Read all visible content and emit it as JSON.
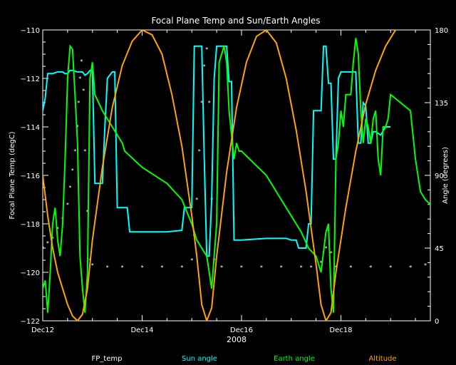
{
  "chart_data": {
    "type": "line",
    "title": "Focal Plane Temp and Sun/Earth Angles",
    "ylabel_left": "Focal Plane Temp (degC)",
    "ylabel_right": "Angle (degrees)",
    "xlabel": "2008",
    "x_ticks": [
      "Dec12",
      "Dec14",
      "Dec16",
      "Dec18"
    ],
    "x_tick_days": [
      12,
      14,
      16,
      18
    ],
    "xlim": [
      12,
      19.8
    ],
    "ylim_left": [
      -122,
      -110
    ],
    "y_ticks_left": [
      -122,
      -120,
      -118,
      -116,
      -114,
      -112,
      -110
    ],
    "ylim_right": [
      0,
      180
    ],
    "y_ticks_right": [
      0,
      45,
      90,
      135,
      180
    ],
    "colors": {
      "FP_temp": "#ffffff",
      "Sun angle": "#00ffff",
      "Earth angle": "#00ff00",
      "Altitude": "#ffa500"
    },
    "series": [
      {
        "name": "FP_temp",
        "axis": "left",
        "style": "markers",
        "points": [
          [
            12.0,
            -119.0
          ],
          [
            12.1,
            -118.8
          ],
          [
            12.2,
            -118.6
          ],
          [
            12.3,
            -118.2
          ],
          [
            12.4,
            -117.8
          ],
          [
            12.5,
            -117.2
          ],
          [
            12.55,
            -116.5
          ],
          [
            12.6,
            -115.8
          ],
          [
            12.65,
            -115.0
          ],
          [
            12.7,
            -114.0
          ],
          [
            12.72,
            -113.0
          ],
          [
            12.75,
            -112.0
          ],
          [
            12.78,
            -111.3
          ],
          [
            12.82,
            -112.5
          ],
          [
            12.85,
            -115.0
          ],
          [
            12.9,
            -117.5
          ],
          [
            12.95,
            -119.5
          ],
          [
            13.0,
            -119.7
          ],
          [
            13.3,
            -119.8
          ],
          [
            13.6,
            -119.8
          ],
          [
            14.0,
            -119.8
          ],
          [
            14.4,
            -119.8
          ],
          [
            14.8,
            -119.8
          ],
          [
            15.0,
            -119.5
          ],
          [
            15.05,
            -118.5
          ],
          [
            15.1,
            -117.0
          ],
          [
            15.15,
            -115.0
          ],
          [
            15.2,
            -113.0
          ],
          [
            15.25,
            -111.5
          ],
          [
            15.3,
            -110.8
          ],
          [
            15.35,
            -113.0
          ],
          [
            15.4,
            -117.0
          ],
          [
            15.45,
            -119.5
          ],
          [
            15.6,
            -119.8
          ],
          [
            16.0,
            -119.8
          ],
          [
            16.4,
            -119.8
          ],
          [
            16.8,
            -119.8
          ],
          [
            17.2,
            -119.8
          ],
          [
            17.4,
            -119.8
          ],
          [
            17.6,
            -119.6
          ],
          [
            17.7,
            -119.0
          ],
          [
            17.75,
            -118.3
          ],
          [
            17.8,
            -119.2
          ],
          [
            17.9,
            -119.8
          ],
          [
            18.2,
            -119.8
          ],
          [
            18.6,
            -119.8
          ],
          [
            19.0,
            -119.8
          ],
          [
            19.4,
            -119.8
          ],
          [
            19.7,
            -119.7
          ]
        ]
      },
      {
        "name": "Sun angle",
        "axis": "right",
        "points": [
          [
            12.0,
            130
          ],
          [
            12.05,
            138
          ],
          [
            12.1,
            153
          ],
          [
            12.2,
            153
          ],
          [
            12.3,
            154
          ],
          [
            12.4,
            154
          ],
          [
            12.45,
            153
          ],
          [
            12.5,
            153
          ],
          [
            12.55,
            155
          ],
          [
            12.6,
            155
          ],
          [
            12.7,
            154
          ],
          [
            12.8,
            154
          ],
          [
            12.85,
            152
          ],
          [
            12.9,
            153
          ],
          [
            12.95,
            155
          ],
          [
            13.0,
            155
          ],
          [
            13.05,
            85
          ],
          [
            13.1,
            85
          ],
          [
            13.2,
            85
          ],
          [
            13.25,
            120
          ],
          [
            13.3,
            150
          ],
          [
            13.4,
            154
          ],
          [
            13.45,
            154
          ],
          [
            13.5,
            70
          ],
          [
            13.7,
            70
          ],
          [
            13.75,
            55
          ],
          [
            14.0,
            55
          ],
          [
            14.5,
            55
          ],
          [
            14.8,
            56
          ],
          [
            14.85,
            70
          ],
          [
            15.0,
            70
          ],
          [
            15.05,
            170
          ],
          [
            15.2,
            170
          ],
          [
            15.25,
            100
          ],
          [
            15.3,
            40
          ],
          [
            15.35,
            40
          ],
          [
            15.4,
            75
          ],
          [
            15.45,
            150
          ],
          [
            15.5,
            170
          ],
          [
            15.6,
            170
          ],
          [
            15.7,
            170
          ],
          [
            15.75,
            148
          ],
          [
            15.8,
            148
          ],
          [
            15.85,
            50
          ],
          [
            16.0,
            50
          ],
          [
            16.5,
            51
          ],
          [
            16.9,
            51
          ],
          [
            17.0,
            50
          ],
          [
            17.1,
            50
          ],
          [
            17.15,
            45
          ],
          [
            17.3,
            45
          ],
          [
            17.35,
            60
          ],
          [
            17.4,
            60
          ],
          [
            17.45,
            130
          ],
          [
            17.6,
            130
          ],
          [
            17.65,
            170
          ],
          [
            17.7,
            170
          ],
          [
            17.75,
            147
          ],
          [
            17.8,
            147
          ],
          [
            17.85,
            100
          ],
          [
            17.9,
            100
          ],
          [
            17.95,
            150
          ],
          [
            18.0,
            154
          ],
          [
            18.3,
            154
          ],
          [
            18.35,
            110
          ],
          [
            18.4,
            110
          ],
          [
            18.45,
            135
          ],
          [
            18.5,
            133
          ],
          [
            18.55,
            110
          ],
          [
            18.6,
            110
          ],
          [
            18.65,
            117
          ],
          [
            18.7,
            117
          ],
          [
            18.8,
            115
          ],
          [
            18.9,
            120
          ],
          [
            18.95,
            120
          ],
          [
            19.0,
            120
          ]
        ]
      },
      {
        "name": "Earth angle",
        "axis": "right",
        "points": [
          [
            12.0,
            20
          ],
          [
            12.05,
            25
          ],
          [
            12.1,
            5
          ],
          [
            12.15,
            30
          ],
          [
            12.2,
            60
          ],
          [
            12.25,
            70
          ],
          [
            12.3,
            50
          ],
          [
            12.35,
            40
          ],
          [
            12.4,
            60
          ],
          [
            12.45,
            100
          ],
          [
            12.5,
            150
          ],
          [
            12.55,
            170
          ],
          [
            12.6,
            168
          ],
          [
            12.65,
            140
          ],
          [
            12.7,
            110
          ],
          [
            12.75,
            40
          ],
          [
            12.8,
            20
          ],
          [
            12.85,
            5
          ],
          [
            12.9,
            30
          ],
          [
            12.95,
            150
          ],
          [
            13.0,
            160
          ],
          [
            13.05,
            140
          ],
          [
            13.2,
            130
          ],
          [
            13.4,
            120
          ],
          [
            13.6,
            110
          ],
          [
            13.65,
            105
          ],
          [
            14.0,
            95
          ],
          [
            14.5,
            85
          ],
          [
            14.8,
            75
          ],
          [
            15.0,
            60
          ],
          [
            15.1,
            50
          ],
          [
            15.3,
            40
          ],
          [
            15.4,
            20
          ],
          [
            15.5,
            60
          ],
          [
            15.55,
            160
          ],
          [
            15.65,
            170
          ],
          [
            15.7,
            160
          ],
          [
            15.75,
            130
          ],
          [
            15.85,
            100
          ],
          [
            15.9,
            110
          ],
          [
            15.95,
            105
          ],
          [
            16.0,
            105
          ],
          [
            16.5,
            90
          ],
          [
            17.0,
            65
          ],
          [
            17.2,
            55
          ],
          [
            17.35,
            45
          ],
          [
            17.5,
            40
          ],
          [
            17.6,
            30
          ],
          [
            17.7,
            55
          ],
          [
            17.75,
            60
          ],
          [
            17.8,
            20
          ],
          [
            17.85,
            5
          ],
          [
            17.9,
            100
          ],
          [
            17.95,
            110
          ],
          [
            18.0,
            130
          ],
          [
            18.05,
            120
          ],
          [
            18.1,
            140
          ],
          [
            18.2,
            140
          ],
          [
            18.25,
            160
          ],
          [
            18.3,
            175
          ],
          [
            18.35,
            165
          ],
          [
            18.4,
            130
          ],
          [
            18.45,
            110
          ],
          [
            18.5,
            125
          ],
          [
            18.55,
            120
          ],
          [
            18.6,
            110
          ],
          [
            18.65,
            125
          ],
          [
            18.7,
            130
          ],
          [
            18.75,
            100
          ],
          [
            18.8,
            90
          ],
          [
            18.85,
            120
          ],
          [
            18.9,
            120
          ],
          [
            18.95,
            125
          ],
          [
            19.0,
            140
          ],
          [
            19.2,
            135
          ],
          [
            19.4,
            130
          ],
          [
            19.5,
            100
          ],
          [
            19.55,
            90
          ],
          [
            19.6,
            80
          ],
          [
            19.7,
            75
          ],
          [
            19.8,
            72
          ]
        ]
      },
      {
        "name": "Altitude",
        "axis": "right",
        "points": [
          [
            12.0,
            90
          ],
          [
            12.1,
            65
          ],
          [
            12.2,
            45
          ],
          [
            12.3,
            30
          ],
          [
            12.4,
            20
          ],
          [
            12.5,
            10
          ],
          [
            12.6,
            3
          ],
          [
            12.7,
            0
          ],
          [
            12.8,
            4
          ],
          [
            12.9,
            20
          ],
          [
            13.0,
            50
          ],
          [
            13.2,
            95
          ],
          [
            13.4,
            132
          ],
          [
            13.6,
            158
          ],
          [
            13.8,
            173
          ],
          [
            14.0,
            180
          ],
          [
            14.2,
            177
          ],
          [
            14.4,
            165
          ],
          [
            14.6,
            140
          ],
          [
            14.8,
            108
          ],
          [
            15.0,
            65
          ],
          [
            15.1,
            40
          ],
          [
            15.2,
            10
          ],
          [
            15.3,
            0
          ],
          [
            15.4,
            8
          ],
          [
            15.5,
            40
          ],
          [
            15.7,
            92
          ],
          [
            15.9,
            132
          ],
          [
            16.1,
            160
          ],
          [
            16.3,
            176
          ],
          [
            16.5,
            180
          ],
          [
            16.7,
            172
          ],
          [
            16.9,
            150
          ],
          [
            17.1,
            118
          ],
          [
            17.3,
            80
          ],
          [
            17.5,
            35
          ],
          [
            17.6,
            10
          ],
          [
            17.7,
            0
          ],
          [
            17.8,
            5
          ],
          [
            17.9,
            30
          ],
          [
            18.1,
            70
          ],
          [
            18.3,
            105
          ],
          [
            18.5,
            134
          ],
          [
            18.7,
            155
          ],
          [
            18.9,
            170
          ],
          [
            19.1,
            180
          ]
        ]
      }
    ],
    "legend": {
      "placement": "bottom",
      "entries": [
        "FP_temp",
        "Sun angle",
        "Earth angle",
        "Altitude"
      ]
    }
  }
}
